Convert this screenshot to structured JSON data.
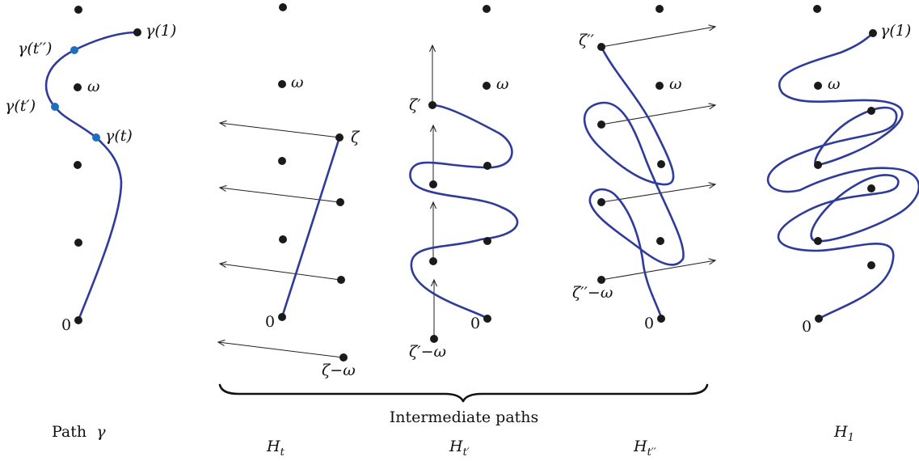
{
  "panels": {
    "path_gamma": {
      "caption_text": "Path",
      "caption_symbol": "γ",
      "labels": {
        "gamma1": "γ(1)",
        "gamma_t2": "γ(t′′)",
        "gamma_t1": "γ(t′)",
        "gamma_t": "γ(t)",
        "omega": "ω",
        "zero": "0"
      }
    },
    "h_t": {
      "caption_base": "H",
      "caption_sub": "t",
      "labels": {
        "zeta": "ζ",
        "omega": "ω",
        "zero": "0",
        "zeta_minus_omega": "ζ−ω"
      }
    },
    "h_t1": {
      "caption_base": "H",
      "caption_sub": "t′",
      "labels": {
        "zeta": "ζ′",
        "omega": "ω",
        "zero": "0",
        "zeta_minus_omega": "ζ′−ω"
      }
    },
    "h_t2": {
      "caption_base": "H",
      "caption_sub": "t′′",
      "labels": {
        "zeta": "ζ′′",
        "omega": "ω",
        "zero": "0",
        "zeta_minus_omega": "ζ′′−ω"
      }
    },
    "h_1": {
      "caption_base": "H",
      "caption_sub": "1",
      "labels": {
        "gamma1": "γ(1)",
        "omega": "ω",
        "zero": "0"
      }
    }
  },
  "brace_caption": "Intermediate paths",
  "colors": {
    "curve": "#2e3b9a",
    "point": "#1a1a1a",
    "marked_point": "#1f6fbf"
  }
}
